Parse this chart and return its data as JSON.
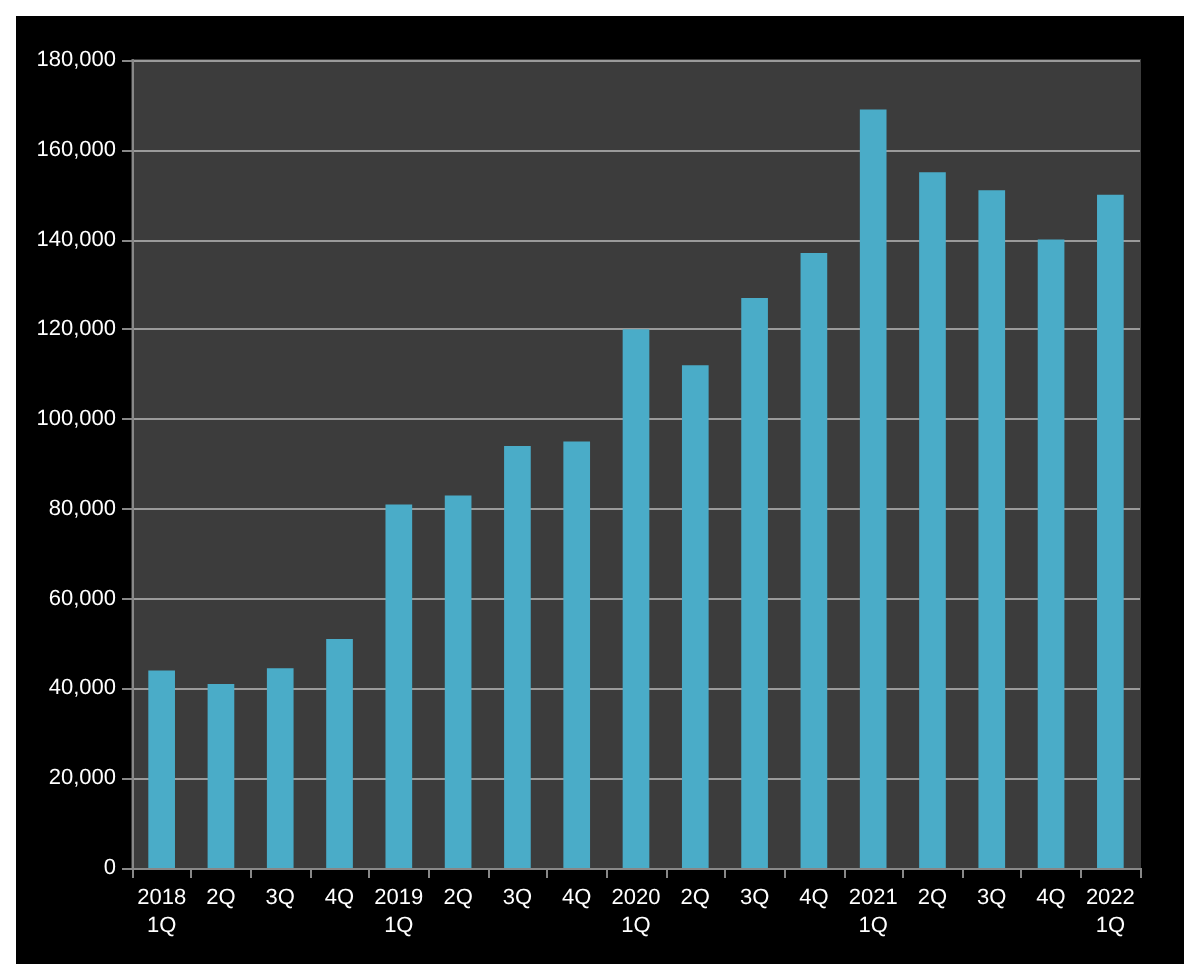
{
  "chart_data": {
    "type": "bar",
    "categories": [
      "2018\n1Q",
      "2Q",
      "3Q",
      "4Q",
      "2019\n1Q",
      "2Q",
      "3Q",
      "4Q",
      "2020\n1Q",
      "2Q",
      "3Q",
      "4Q",
      "2021\n1Q",
      "2Q",
      "3Q",
      "4Q",
      "2022\n1Q"
    ],
    "values": [
      44000,
      41000,
      44500,
      51000,
      81000,
      83000,
      94000,
      95000,
      120000,
      112000,
      127000,
      137000,
      169000,
      155000,
      151000,
      140000,
      150000
    ],
    "color": "#4aacc8",
    "ylim": [
      0,
      180000
    ],
    "yticks": [
      0,
      {
        "value": 20000,
        "label": "20,000"
      },
      {
        "value": 40000,
        "label": "40,000"
      },
      {
        "value": 60000,
        "label": "60,000"
      },
      {
        "value": 80000,
        "label": "80,000"
      },
      {
        "value": 100000,
        "label": "100,000"
      },
      {
        "value": 120000,
        "label": "120,000"
      },
      {
        "value": 140000,
        "label": "140,000"
      },
      {
        "value": 160000,
        "label": "160,000"
      },
      {
        "value": 180000,
        "label": "180,000"
      }
    ],
    "grid": "y"
  }
}
